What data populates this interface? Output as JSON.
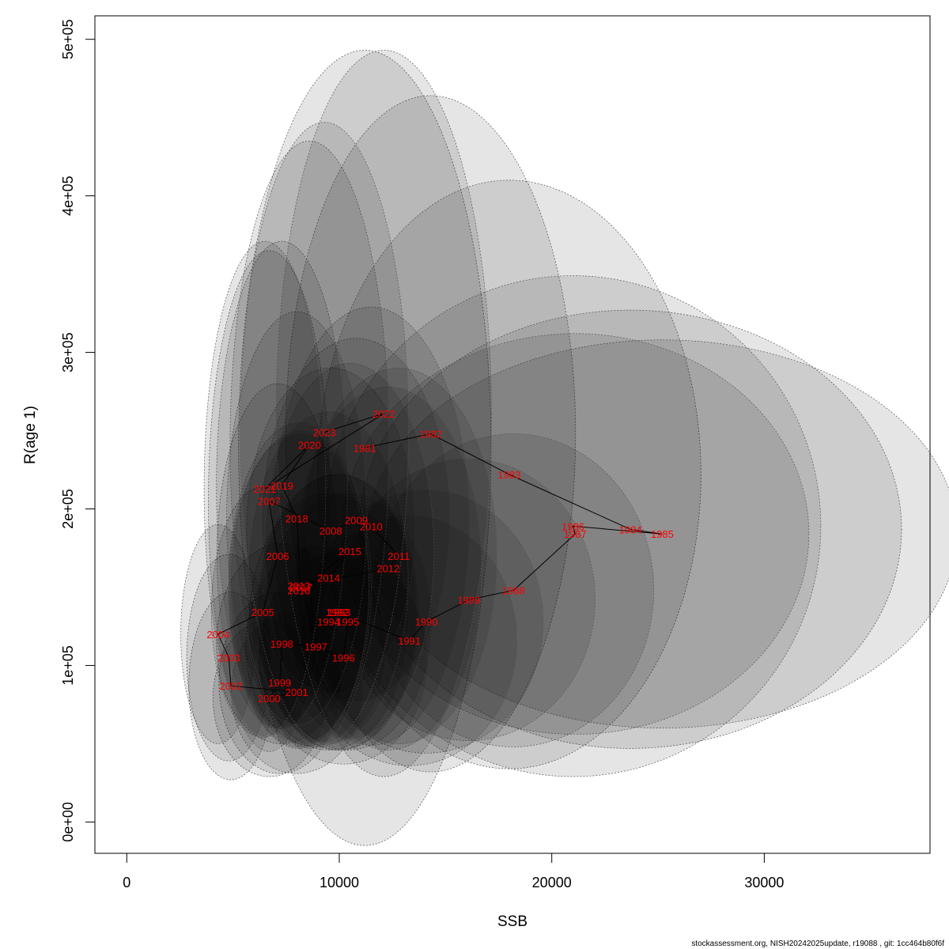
{
  "chart_data": {
    "type": "scatter",
    "xlabel": "SSB",
    "ylabel": "R(age 1)",
    "xlim": [
      -1500,
      37800
    ],
    "ylim": [
      -20000,
      515000
    ],
    "x_ticks": [
      0,
      10000,
      20000,
      30000
    ],
    "x_tick_labels": [
      "0",
      "10000",
      "20000",
      "30000"
    ],
    "y_ticks": [
      0,
      100000,
      200000,
      300000,
      400000,
      500000
    ],
    "y_tick_labels": [
      "0e+00",
      "1e+05",
      "2e+05",
      "3e+05",
      "4e+05",
      "5e+05"
    ],
    "grid": false,
    "line_color": "#000000",
    "label_color": "#ff0000",
    "ellipse_fill": "#000000",
    "ellipse_fill_opacity": 0.1,
    "ellipse_stroke": "#555555",
    "points": [
      {
        "year": "1981",
        "ssb": 11200,
        "r": 239000,
        "ssb_sd": 2700,
        "r_sd": 127000
      },
      {
        "year": "1982",
        "ssb": 14300,
        "r": 248000,
        "ssb_sd": 3100,
        "r_sd": 108000
      },
      {
        "year": "1983",
        "ssb": 18000,
        "r": 222000,
        "ssb_sd": 4100,
        "r_sd": 94000
      },
      {
        "year": "1984",
        "ssb": 23700,
        "r": 187000,
        "ssb_sd": 5800,
        "r_sd": 70000
      },
      {
        "year": "1985",
        "ssb": 25200,
        "r": 184000,
        "ssb_sd": 6300,
        "r_sd": 62000
      },
      {
        "year": "1986",
        "ssb": 21000,
        "r": 189000,
        "ssb_sd": 5300,
        "r_sd": 80000
      },
      {
        "year": "1987",
        "ssb": 21100,
        "r": 184000,
        "ssb_sd": 5000,
        "r_sd": 64000
      },
      {
        "year": "1988",
        "ssb": 18200,
        "r": 148000,
        "ssb_sd": 3000,
        "r_sd": 50000
      },
      {
        "year": "1989",
        "ssb": 16100,
        "r": 142000,
        "ssb_sd": 2700,
        "r_sd": 45000
      },
      {
        "year": "1990",
        "ssb": 14100,
        "r": 128000,
        "ssb_sd": 2500,
        "r_sd": 42000
      },
      {
        "year": "1991",
        "ssb": 13300,
        "r": 116000,
        "ssb_sd": 2300,
        "r_sd": 40000
      },
      {
        "year": "1992",
        "ssb": 9900,
        "r": 134000,
        "ssb_sd": 1700,
        "r_sd": 44000
      },
      {
        "year": "1993",
        "ssb": 10000,
        "r": 134000,
        "ssb_sd": 1700,
        "r_sd": 44000
      },
      {
        "year": "1994",
        "ssb": 9500,
        "r": 128000,
        "ssb_sd": 1700,
        "r_sd": 41000
      },
      {
        "year": "1995",
        "ssb": 10400,
        "r": 128000,
        "ssb_sd": 1800,
        "r_sd": 41000
      },
      {
        "year": "1996",
        "ssb": 10200,
        "r": 105000,
        "ssb_sd": 1800,
        "r_sd": 34000
      },
      {
        "year": "1997",
        "ssb": 8900,
        "r": 112000,
        "ssb_sd": 1500,
        "r_sd": 32000
      },
      {
        "year": "1998",
        "ssb": 7300,
        "r": 114000,
        "ssb_sd": 1400,
        "r_sd": 32000
      },
      {
        "year": "1999",
        "ssb": 7200,
        "r": 89000,
        "ssb_sd": 1300,
        "r_sd": 29000
      },
      {
        "year": "2000",
        "ssb": 6700,
        "r": 79000,
        "ssb_sd": 1200,
        "r_sd": 25000
      },
      {
        "year": "2001",
        "ssb": 8000,
        "r": 83000,
        "ssb_sd": 1400,
        "r_sd": 26000
      },
      {
        "year": "2002",
        "ssb": 4900,
        "r": 87000,
        "ssb_sd": 900,
        "r_sd": 30000
      },
      {
        "year": "2003",
        "ssb": 4800,
        "r": 105000,
        "ssb_sd": 900,
        "r_sd": 33000
      },
      {
        "year": "2004",
        "ssb": 4300,
        "r": 120000,
        "ssb_sd": 800,
        "r_sd": 35000
      },
      {
        "year": "2005",
        "ssb": 6400,
        "r": 134000,
        "ssb_sd": 1100,
        "r_sd": 40000
      },
      {
        "year": "2006",
        "ssb": 7100,
        "r": 170000,
        "ssb_sd": 1300,
        "r_sd": 55000
      },
      {
        "year": "2007",
        "ssb": 6700,
        "r": 205000,
        "ssb_sd": 1300,
        "r_sd": 80000
      },
      {
        "year": "2008",
        "ssb": 9600,
        "r": 186000,
        "ssb_sd": 1800,
        "r_sd": 52000
      },
      {
        "year": "2009",
        "ssb": 10800,
        "r": 193000,
        "ssb_sd": 2000,
        "r_sd": 58000
      },
      {
        "year": "2010",
        "ssb": 11500,
        "r": 189000,
        "ssb_sd": 2100,
        "r_sd": 70000
      },
      {
        "year": "2011",
        "ssb": 12800,
        "r": 170000,
        "ssb_sd": 2100,
        "r_sd": 60000
      },
      {
        "year": "2012",
        "ssb": 12300,
        "r": 162000,
        "ssb_sd": 2000,
        "r_sd": 58000
      },
      {
        "year": "2013",
        "ssb": 8100,
        "r": 151000,
        "ssb_sd": 1500,
        "r_sd": 52000
      },
      {
        "year": "2014",
        "ssb": 9500,
        "r": 156000,
        "ssb_sd": 1700,
        "r_sd": 53000
      },
      {
        "year": "2015",
        "ssb": 10500,
        "r": 173000,
        "ssb_sd": 1800,
        "r_sd": 60000
      },
      {
        "year": "2016",
        "ssb": 8100,
        "r": 148000,
        "ssb_sd": 1500,
        "r_sd": 50000
      },
      {
        "year": "2017",
        "ssb": 8200,
        "r": 150000,
        "ssb_sd": 1500,
        "r_sd": 50000
      },
      {
        "year": "2018",
        "ssb": 8000,
        "r": 194000,
        "ssb_sd": 1500,
        "r_sd": 66000
      },
      {
        "year": "2019",
        "ssb": 7300,
        "r": 215000,
        "ssb_sd": 1400,
        "r_sd": 78000
      },
      {
        "year": "2020",
        "ssb": 8600,
        "r": 241000,
        "ssb_sd": 1700,
        "r_sd": 97000
      },
      {
        "year": "2021",
        "ssb": 6500,
        "r": 213000,
        "ssb_sd": 1300,
        "r_sd": 79000
      },
      {
        "year": "2022",
        "ssb": 12100,
        "r": 261000,
        "ssb_sd": 2300,
        "r_sd": 116000
      },
      {
        "year": "2023",
        "ssb": 9300,
        "r": 249000,
        "ssb_sd": 1800,
        "r_sd": 99000
      }
    ]
  },
  "footer": "stockassessment.org, NISH20242025update, r19088 , git: 1cc464b80f6f"
}
